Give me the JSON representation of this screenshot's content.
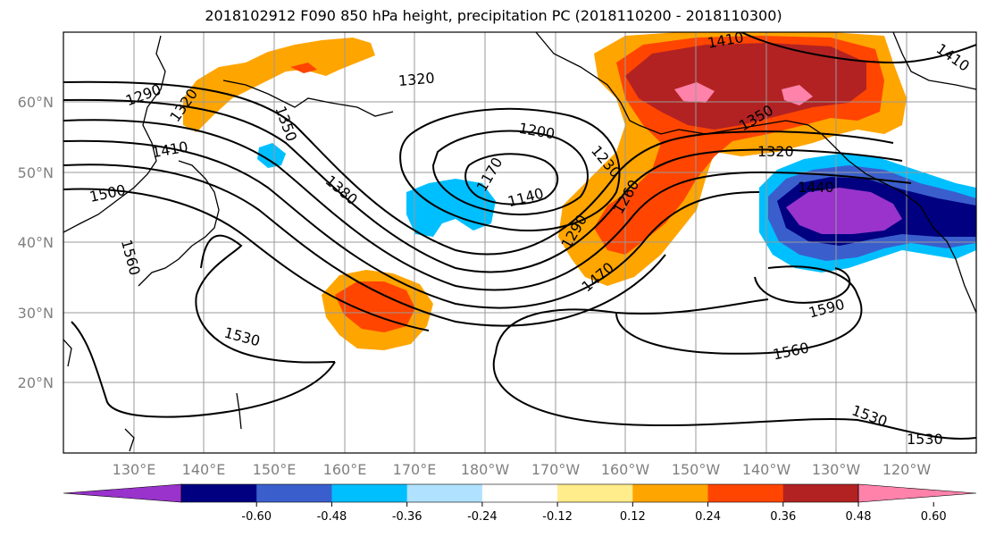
{
  "title": "2018102912 F090 850 hPa height, precipitation PC (2018110200 - 2018110300)",
  "map": {
    "lat_labels": [
      "60°N",
      "50°N",
      "40°N",
      "30°N",
      "20°N"
    ],
    "lon_labels": [
      "130°E",
      "140°E",
      "150°E",
      "160°E",
      "170°E",
      "180°W",
      "170°W",
      "160°W",
      "150°W",
      "140°W",
      "130°W",
      "120°W"
    ],
    "contour_labels": [
      "1290",
      "1320",
      "1350",
      "1410",
      "1500",
      "1560",
      "1320",
      "1380",
      "1200",
      "1170",
      "1140",
      "1230",
      "1260",
      "1290",
      "1470",
      "1530",
      "1410",
      "1350",
      "1320",
      "1440",
      "1590",
      "1560",
      "1530",
      "1530",
      "1410"
    ]
  },
  "colorbar": {
    "colors": [
      "#9933cc",
      "#000080",
      "#3a5fcd",
      "#00bfff",
      "#b0e2ff",
      "#ffffff",
      "#ffec8b",
      "#ffa500",
      "#ff4500",
      "#b22222",
      "#ff82ab"
    ],
    "tick_labels": [
      "-0.60",
      "-0.48",
      "-0.36",
      "-0.24",
      "-0.12",
      "0.12",
      "0.24",
      "0.36",
      "0.48",
      "0.60"
    ]
  }
}
